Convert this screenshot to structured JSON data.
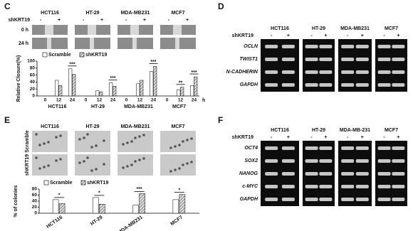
{
  "panels": {
    "c": "C",
    "d": "D",
    "e": "E",
    "f": "F"
  },
  "migration": {
    "cell_lines": [
      "HCT116",
      "HT-29",
      "MDA-MB231",
      "MCF7"
    ],
    "condition": "shKRT19",
    "signs": [
      "-",
      "+"
    ],
    "rows": [
      "0 h",
      "24 h"
    ]
  },
  "chart_data": [
    {
      "type": "bar",
      "y_label": "Relative Closure(%)",
      "groups": [
        "HCT116",
        "HT-29",
        "MDA-MB231",
        "MCF7"
      ],
      "categories": [
        "0",
        "12",
        "24",
        "0",
        "12",
        "24",
        "0",
        "12",
        "24",
        "0",
        "12",
        "24"
      ],
      "x_unit": "h",
      "series": [
        {
          "name": "Scramble",
          "color": "#ffffff",
          "values": [
            0,
            45,
            78,
            0,
            15,
            38,
            0,
            35,
            70,
            0,
            18,
            30
          ]
        },
        {
          "name": "shKRT19",
          "color": "#a8a8a8",
          "values": [
            0,
            30,
            62,
            0,
            12,
            28,
            0,
            45,
            85,
            0,
            25,
            55
          ]
        }
      ],
      "ylim": [
        0,
        100
      ],
      "yticks": [
        0,
        20,
        40,
        60,
        80,
        100
      ],
      "annotations": [
        "***",
        "***",
        "***",
        "**",
        "***"
      ]
    },
    {
      "type": "bar",
      "y_label": "% of colonies",
      "categories": [
        "HCT116",
        "HT-29",
        "MDA-MB231",
        "MCF7"
      ],
      "series": [
        {
          "name": "Scramble",
          "color": "#ffffff",
          "values": [
            45,
            52,
            27,
            45
          ]
        },
        {
          "name": "shKRT19",
          "color": "#a8a8a8",
          "values": [
            32,
            30,
            65,
            62
          ]
        }
      ],
      "ylim": [
        0,
        80
      ],
      "yticks": [
        0,
        20,
        40,
        60,
        80
      ],
      "annotations": [
        "*",
        "*",
        "***",
        "*"
      ]
    }
  ],
  "emt_blot": {
    "condition": "shKRT19",
    "cell_lines": [
      "HCT116",
      "HT-29",
      "MDA-MB231",
      "MCF7"
    ],
    "signs": [
      "-",
      "+"
    ],
    "markers": [
      "OCLN",
      "TWIST1",
      "N-CADHERIN",
      "GAPDH"
    ]
  },
  "colony": {
    "cell_lines": [
      "HCT116",
      "HT-29",
      "MDA-MB231",
      "MCF7"
    ],
    "rows": [
      "Scramble",
      "shKRT19"
    ]
  },
  "stemness_blot": {
    "condition": "shKRT19",
    "cell_lines": [
      "HCT116",
      "HT-29",
      "MDA-MB-231",
      "MCF7"
    ],
    "signs": [
      "-",
      "+"
    ],
    "markers": [
      "OCT4",
      "SOX2",
      "NANOG",
      "c-MYC",
      "GAPDH"
    ]
  }
}
